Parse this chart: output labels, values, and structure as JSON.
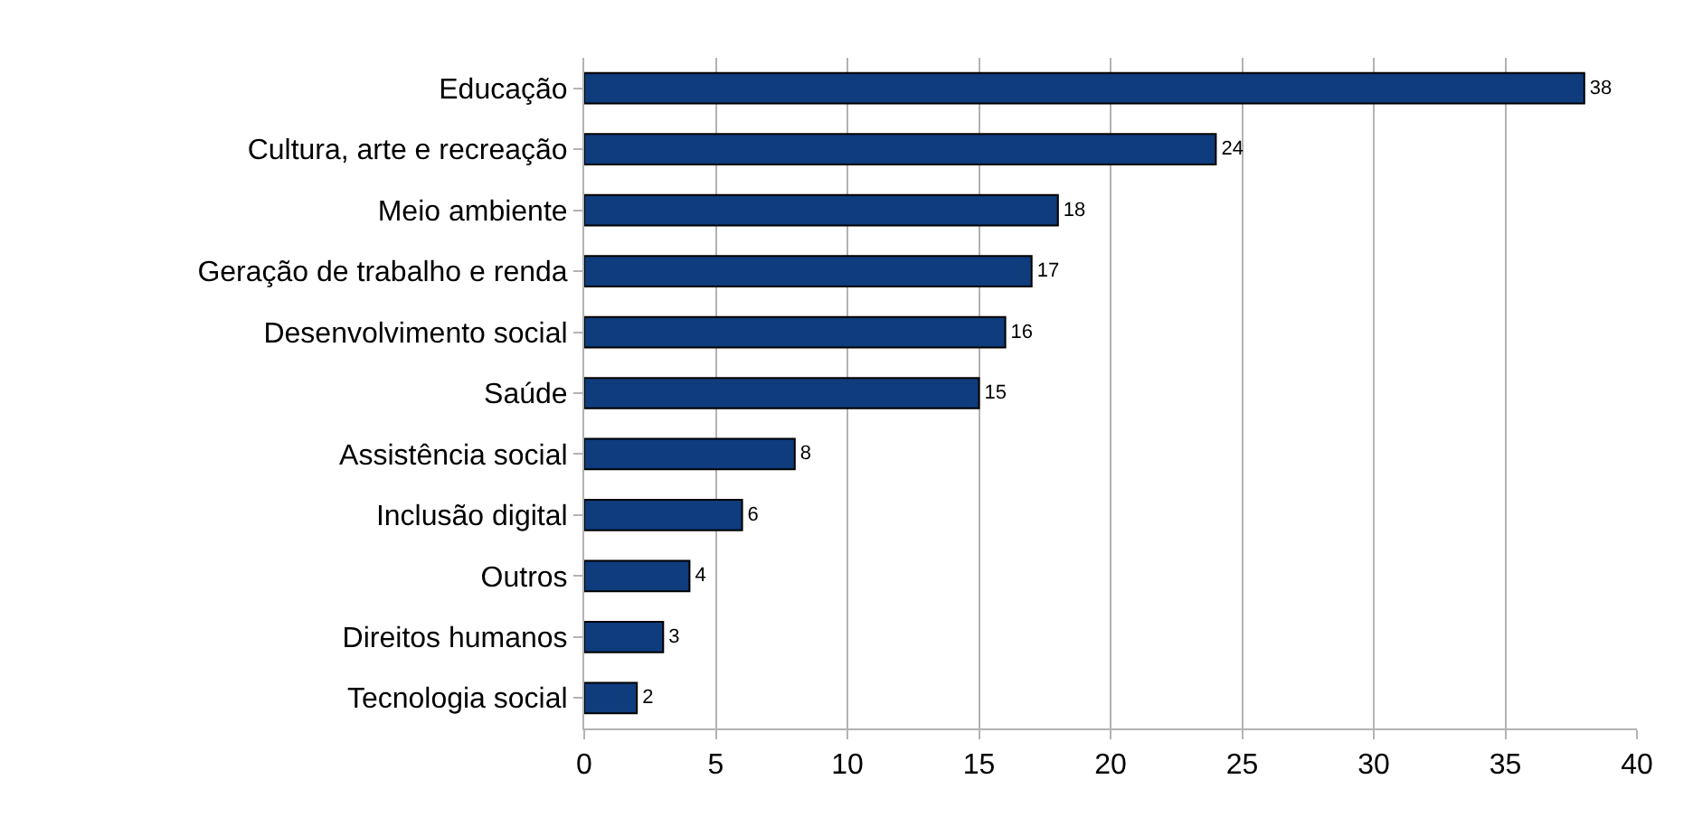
{
  "chart_data": {
    "type": "bar",
    "orientation": "horizontal",
    "categories": [
      "Educação",
      "Cultura, arte e recreação",
      "Meio ambiente",
      "Geração de trabalho e renda",
      "Desenvolvimento social",
      "Saúde",
      "Assistência social",
      "Inclusão digital",
      "Outros",
      "Direitos humanos",
      "Tecnologia social"
    ],
    "values": [
      38,
      24,
      18,
      17,
      16,
      15,
      8,
      6,
      4,
      3,
      2
    ],
    "color": "#0e3c7c",
    "xlim": [
      0,
      40
    ],
    "xticks": [
      0,
      5,
      10,
      15,
      20,
      25,
      30,
      35,
      40
    ],
    "grid": "x",
    "data_labels": true,
    "legend": false
  }
}
